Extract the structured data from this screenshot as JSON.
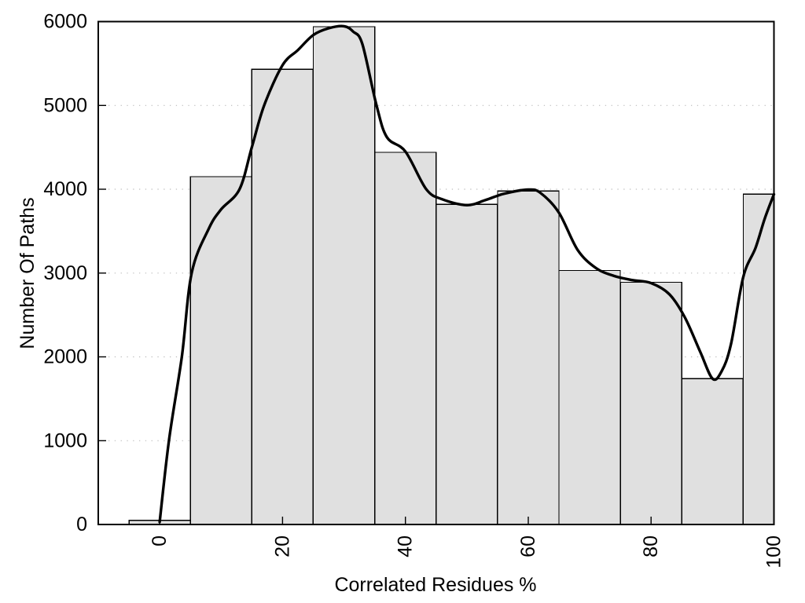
{
  "figure": {
    "background": "#ffffff"
  },
  "chart_data": {
    "type": "bar",
    "subtype": "histogram_with_smooth_curve",
    "title": "",
    "xlabel": "Correlated Residues %",
    "ylabel": "Number Of Paths",
    "xlim": [
      -10,
      100
    ],
    "ylim": [
      0,
      6000
    ],
    "x_ticks": [
      0,
      20,
      40,
      60,
      80,
      100
    ],
    "x_tick_labels": [
      "0",
      "20",
      "40",
      "60",
      "80",
      "100"
    ],
    "x_tick_label_rotation_deg": -90,
    "y_ticks": [
      0,
      1000,
      2000,
      3000,
      4000,
      5000,
      6000
    ],
    "y_tick_labels": [
      "0",
      "1000",
      "2000",
      "3000",
      "4000",
      "5000",
      "6000"
    ],
    "grid": {
      "horizontal_dotted": true,
      "vertical": false
    },
    "legend_position": "none",
    "bin_width": 10,
    "categories": [
      0,
      10,
      20,
      30,
      40,
      50,
      60,
      70,
      80,
      90,
      100
    ],
    "values": [
      50,
      4150,
      5430,
      5940,
      4440,
      3820,
      3980,
      3030,
      2890,
      1740,
      3940
    ],
    "series": [
      {
        "name": "paths-histogram",
        "type": "bar",
        "bin_centers": [
          0,
          10,
          20,
          30,
          40,
          50,
          60,
          70,
          80,
          90,
          100
        ],
        "values": [
          50,
          4150,
          5430,
          5940,
          4440,
          3820,
          3980,
          3030,
          2890,
          1740,
          3940
        ]
      },
      {
        "name": "smooth-trend-curve",
        "type": "line",
        "points": [
          [
            0,
            30
          ],
          [
            1.5,
            1000
          ],
          [
            3.6,
            2000
          ],
          [
            5.2,
            3000
          ],
          [
            8,
            3530
          ],
          [
            10,
            3760
          ],
          [
            13,
            4000
          ],
          [
            15,
            4500
          ],
          [
            17,
            5000
          ],
          [
            20,
            5480
          ],
          [
            22.5,
            5660
          ],
          [
            25,
            5840
          ],
          [
            27.5,
            5920
          ],
          [
            30,
            5945
          ],
          [
            31.5,
            5880
          ],
          [
            33,
            5730
          ],
          [
            35.3,
            5000
          ],
          [
            37,
            4620
          ],
          [
            40,
            4450
          ],
          [
            43.4,
            4000
          ],
          [
            46,
            3880
          ],
          [
            50,
            3810
          ],
          [
            53,
            3870
          ],
          [
            56,
            3945
          ],
          [
            60,
            3995
          ],
          [
            62,
            3955
          ],
          [
            65,
            3720
          ],
          [
            68,
            3280
          ],
          [
            71,
            3060
          ],
          [
            74,
            2965
          ],
          [
            77,
            2915
          ],
          [
            80,
            2880
          ],
          [
            83,
            2745
          ],
          [
            85.5,
            2470
          ],
          [
            88,
            2060
          ],
          [
            90,
            1740
          ],
          [
            91.5,
            1830
          ],
          [
            93,
            2150
          ],
          [
            95,
            2950
          ],
          [
            97,
            3300
          ],
          [
            98.5,
            3650
          ],
          [
            100,
            3940
          ]
        ]
      }
    ],
    "colors": {
      "background": "#ffffff",
      "bar_fill": "#e0e0e0",
      "bar_border": "#000000",
      "curve": "#000000",
      "grid": "#bdbdbd",
      "frame": "#000000",
      "text": "#000000"
    }
  }
}
